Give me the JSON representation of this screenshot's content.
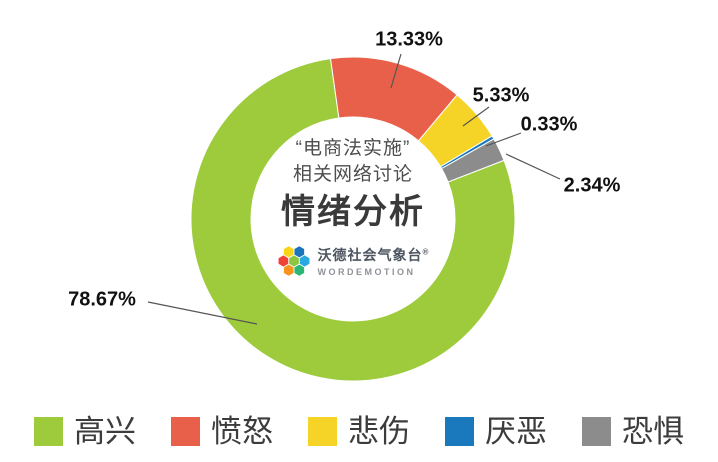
{
  "chart_data": {
    "type": "donut",
    "title": "“电商法实施”相关网络讨论 情绪分析",
    "center_title": {
      "line1": "“电商法实施”",
      "line2": "相关网络讨论",
      "line3": "情绪分析"
    },
    "brand": {
      "name": "沃德社会气象台",
      "reg_mark": "®",
      "latin": "WORDEMOTION",
      "logo_colors": [
        "#8CC63F",
        "#27AAE1",
        "#2BB673",
        "#F7941E",
        "#EF4136",
        "#F7D417",
        "#1B75BB"
      ]
    },
    "series": [
      {
        "name": "高兴",
        "value": 78.67,
        "display": "78.67%",
        "color": "#9DCB3B"
      },
      {
        "name": "愤怒",
        "value": 13.33,
        "display": "13.33%",
        "color": "#E9604A"
      },
      {
        "name": "悲伤",
        "value": 5.33,
        "display": "5.33%",
        "color": "#F5D327"
      },
      {
        "name": "厌恶",
        "value": 0.33,
        "display": "0.33%",
        "color": "#1A79BD"
      },
      {
        "name": "恐惧",
        "value": 2.34,
        "display": "2.34%",
        "color": "#8C8C8C"
      }
    ],
    "draw_order": [
      1,
      2,
      3,
      4,
      0
    ],
    "start_angle_deg": -8,
    "legend_position": "bottom",
    "grid": false
  }
}
